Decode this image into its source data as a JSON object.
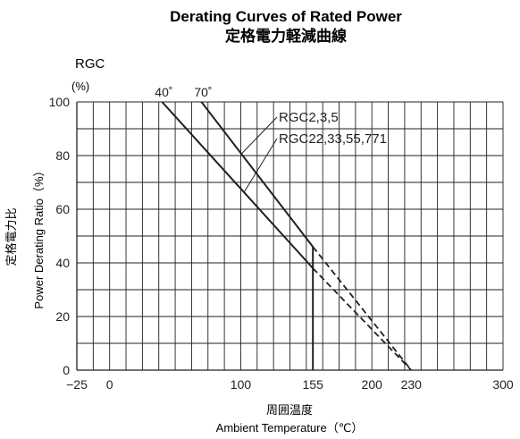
{
  "chart_data": {
    "type": "line",
    "title": "Derating Curves of Rated Power",
    "subtitle": "定格電力軽減曲線",
    "model_label": "RGC",
    "xlabel": "周囲温度",
    "xlabel_en": "Ambient Temperature（℃）",
    "ylabel": "定格電力比",
    "ylabel_en": "Power Derating Ratio（%）",
    "y_unit": "(%)",
    "xlim": [
      -25,
      300
    ],
    "ylim": [
      0,
      100
    ],
    "x_ticks": [
      {
        "value": -25,
        "label": "−25"
      },
      {
        "value": 0,
        "label": "0"
      },
      {
        "value": 100,
        "label": "100"
      },
      {
        "value": 155,
        "label": "155"
      },
      {
        "value": 200,
        "label": "200"
      },
      {
        "value": 230,
        "label": "230"
      },
      {
        "value": 300,
        "label": "300"
      }
    ],
    "y_ticks": [
      {
        "value": 0,
        "label": "0"
      },
      {
        "value": 20,
        "label": "20"
      },
      {
        "value": 40,
        "label": "40"
      },
      {
        "value": 60,
        "label": "60"
      },
      {
        "value": 80,
        "label": "80"
      },
      {
        "value": 100,
        "label": "100"
      }
    ],
    "grid": true,
    "grid_x_step": 12.5,
    "grid_y_step": 10,
    "top_labels": [
      {
        "value": 40,
        "label": "40˚"
      },
      {
        "value": 70,
        "label": "70˚"
      }
    ],
    "series": [
      {
        "name": "RGC2,3,5",
        "solid": [
          [
            70,
            100
          ],
          [
            155,
            46
          ]
        ],
        "dashed": [
          [
            155,
            46
          ],
          [
            230,
            0
          ]
        ]
      },
      {
        "name": "RGC22,33,55,771",
        "solid": [
          [
            40,
            100
          ],
          [
            155,
            38
          ]
        ],
        "dashed": [
          [
            155,
            38
          ],
          [
            230,
            0
          ]
        ]
      }
    ],
    "vertical_line": {
      "x": 155,
      "y_from": 0,
      "y_to": 46
    }
  }
}
